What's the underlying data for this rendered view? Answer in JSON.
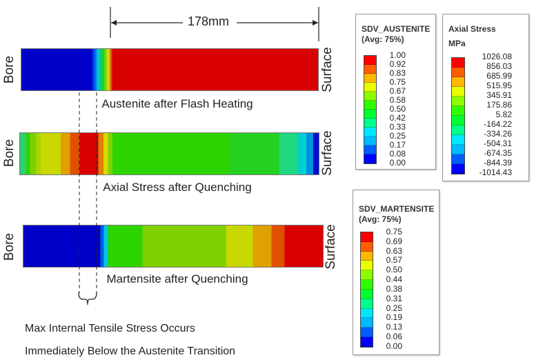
{
  "dimension": {
    "label": "178mm"
  },
  "bars": [
    {
      "caption": "Austenite after Flash Heating",
      "left_label": "Bore",
      "right_label": "Surface"
    },
    {
      "caption": "Axial Stress after Quenching",
      "left_label": "Bore",
      "right_label": "Surface"
    },
    {
      "caption": "Martensite after Quenching",
      "left_label": "Bore",
      "right_label": "Surface"
    }
  ],
  "annotation": {
    "line1": "Max Internal Tensile Stress Occurs",
    "line2": "Immediately Below the Austenite Transition"
  },
  "palette": [
    "#ff0000",
    "#ff5d00",
    "#ffb900",
    "#e8ff00",
    "#8bff00",
    "#2eff00",
    "#00ff2e",
    "#00ff8b",
    "#00e8ff",
    "#00b9ff",
    "#005dff",
    "#0000ff"
  ],
  "legends": {
    "austenite": {
      "title": "SDV_AUSTENITE",
      "subtitle": "(Avg: 75%)",
      "values": [
        "1.00",
        "0.92",
        "0.83",
        "0.75",
        "0.67",
        "0.58",
        "0.50",
        "0.42",
        "0.33",
        "0.25",
        "0.17",
        "0.08",
        "0.00"
      ]
    },
    "axial": {
      "title": "Axial Stress",
      "subtitle": "MPa",
      "values": [
        "1026.08",
        "856.03",
        "685.99",
        "515.95",
        "345.91",
        "175.86",
        "5.82",
        "-164.22",
        "-334.26",
        "-504.31",
        "-674.35",
        "-844.39",
        "-1014.43"
      ]
    },
    "martensite": {
      "title": "SDV_MARTENSITE",
      "subtitle": "(Avg: 75%)",
      "values": [
        "0.75",
        "0.69",
        "0.63",
        "0.57",
        "0.50",
        "0.44",
        "0.38",
        "0.31",
        "0.25",
        "0.19",
        "0.13",
        "0.06",
        "0.00"
      ]
    }
  }
}
